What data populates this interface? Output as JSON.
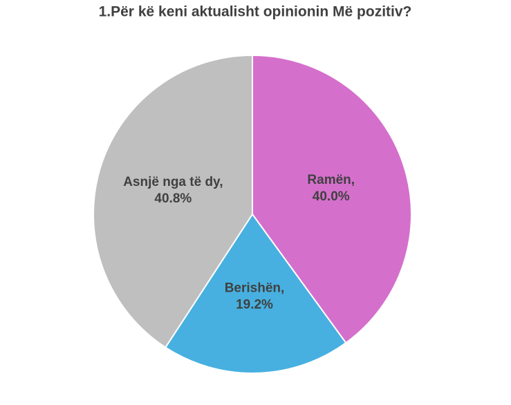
{
  "chart_data": {
    "type": "pie",
    "title": "1.Për kë keni aktualisht opinionin Më pozitiv?",
    "categories": [
      "Ramën,",
      "Berishën,",
      "Asnjë nga të dy,"
    ],
    "values": [
      40.0,
      19.2,
      40.8
    ],
    "value_labels": [
      "40.0%",
      "19.2%",
      "40.8%"
    ],
    "colors": [
      "#d56fcc",
      "#47b0e0",
      "#bfbfbf"
    ]
  }
}
